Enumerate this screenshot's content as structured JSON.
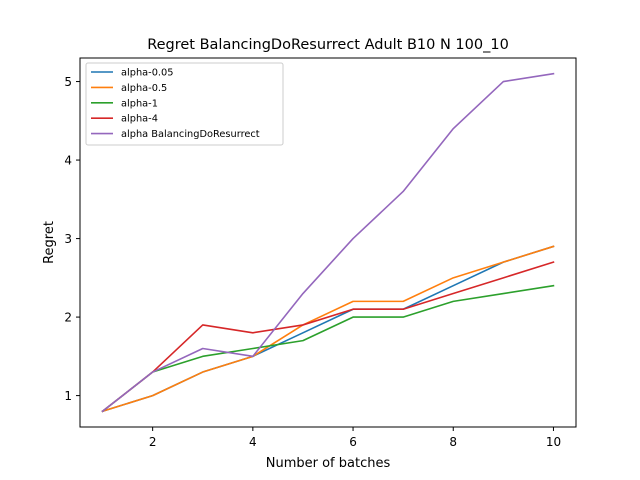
{
  "chart_data": {
    "type": "line",
    "title": "Regret BalancingDoResurrect Adult B10 N 100_10",
    "xlabel": "Number of batches",
    "ylabel": "Regret",
    "xlim": [
      0.55,
      10.45
    ],
    "ylim": [
      0.6,
      5.3
    ],
    "xticks": [
      2,
      4,
      6,
      8,
      10
    ],
    "yticks": [
      1,
      2,
      3,
      4,
      5
    ],
    "legend_position": "top-left",
    "x": [
      1,
      2,
      3,
      4,
      5,
      6,
      7,
      8,
      9,
      10
    ],
    "series": [
      {
        "name": "alpha-0.05",
        "color": "#1f77b4",
        "values": [
          0.8,
          1.0,
          1.3,
          1.5,
          1.8,
          2.1,
          2.1,
          2.4,
          2.7,
          2.9
        ]
      },
      {
        "name": "alpha-0.5",
        "color": "#ff7f0e",
        "values": [
          0.8,
          1.0,
          1.3,
          1.5,
          1.9,
          2.2,
          2.2,
          2.5,
          2.7,
          2.9
        ]
      },
      {
        "name": "alpha-1",
        "color": "#2ca02c",
        "values": [
          0.8,
          1.3,
          1.5,
          1.6,
          1.7,
          2.0,
          2.0,
          2.2,
          2.3,
          2.4
        ]
      },
      {
        "name": "alpha-4",
        "color": "#d62728",
        "values": [
          0.8,
          1.3,
          1.9,
          1.8,
          1.9,
          2.1,
          2.1,
          2.3,
          2.5,
          2.7
        ]
      },
      {
        "name": "alpha BalancingDoResurrect",
        "color": "#9467bd",
        "values": [
          0.8,
          1.3,
          1.6,
          1.5,
          2.3,
          3.0,
          3.6,
          4.4,
          5.0,
          5.1
        ]
      }
    ]
  }
}
